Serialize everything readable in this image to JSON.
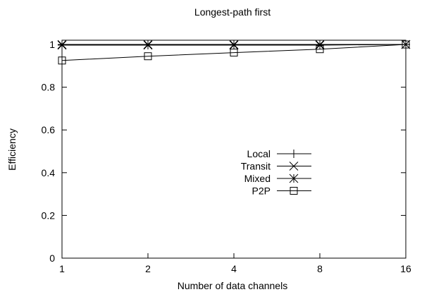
{
  "chart_data": {
    "type": "line",
    "title": "Longest-path first",
    "xlabel": "Number of data channels",
    "ylabel": "Efficiency",
    "categories": [
      "1",
      "2",
      "4",
      "8",
      "16"
    ],
    "yticks": [
      "0",
      "0.2",
      "0.4",
      "0.6",
      "0.8",
      "1"
    ],
    "ylim": [
      0,
      1.02
    ],
    "grid": false,
    "legend_position": "center-right",
    "series": [
      {
        "name": "Local",
        "marker": "plus",
        "values": [
          1.0,
          1.0,
          1.0,
          1.0,
          1.0
        ]
      },
      {
        "name": "Transit",
        "marker": "cross",
        "values": [
          1.0,
          1.0,
          1.0,
          1.0,
          1.0
        ]
      },
      {
        "name": "Mixed",
        "marker": "star",
        "values": [
          0.997,
          0.997,
          0.997,
          0.997,
          1.0
        ]
      },
      {
        "name": "P2P",
        "marker": "square",
        "values": [
          0.925,
          0.945,
          0.962,
          0.978,
          1.0
        ]
      }
    ]
  }
}
